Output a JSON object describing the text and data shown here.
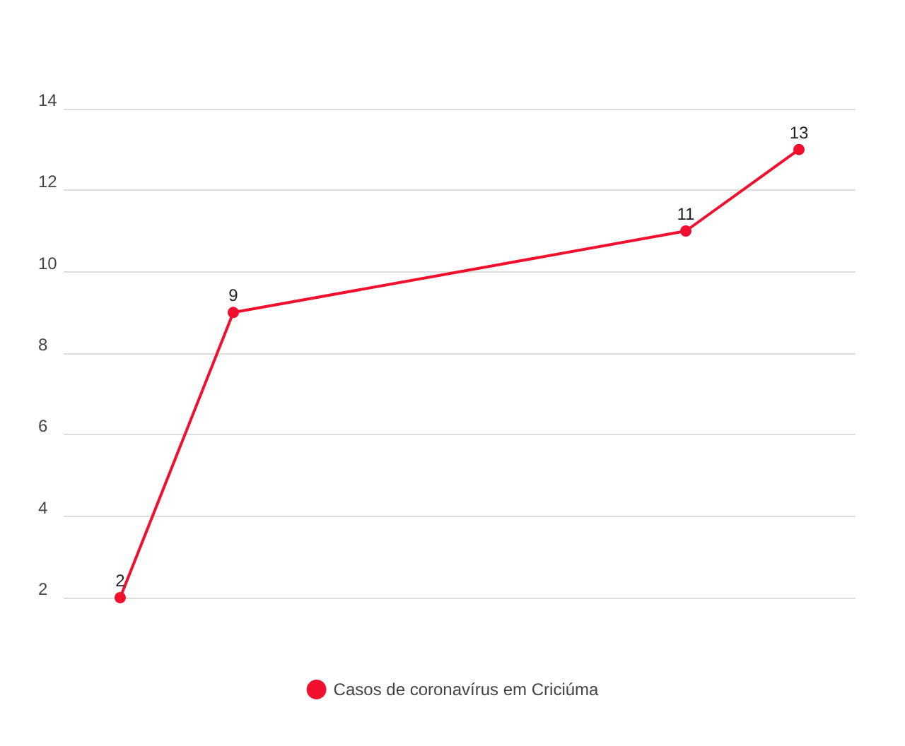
{
  "chart_data": {
    "type": "line",
    "categories": [
      null,
      null,
      null,
      null,
      null,
      null,
      null
    ],
    "series": [
      {
        "name": "Casos de coronavírus em Criciúma",
        "color": "#f0102e",
        "values": [
          2,
          9,
          null,
          null,
          null,
          11,
          13
        ]
      }
    ],
    "ylim": [
      2,
      14
    ],
    "yticks": [
      2,
      4,
      6,
      8,
      10,
      12,
      14
    ],
    "grid": "y",
    "legend": "bottom",
    "marker": "circle",
    "data_labels": true,
    "tick_labels": "y"
  }
}
